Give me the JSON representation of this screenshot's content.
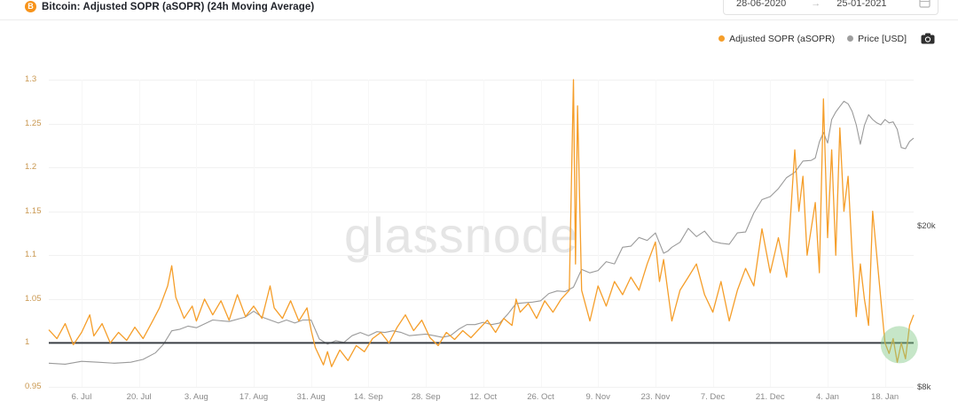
{
  "header": {
    "title": "Bitcoin: Adjusted SOPR (aSOPR) (24h Moving Average)",
    "coin_icon": "bitcoin-icon",
    "btc_glyph": "B",
    "date_range": {
      "start": "28-06-2020",
      "arrow": "→",
      "end": "25-01-2021"
    }
  },
  "legend": {
    "items": [
      {
        "label": "Adjusted SOPR (aSOPR)",
        "color": "#f59e2a"
      },
      {
        "label": "Price [USD]",
        "color": "#9e9e9e"
      }
    ],
    "camera_icon": "camera-icon"
  },
  "watermark": "glassnode",
  "chart_data": {
    "type": "line",
    "title": "Bitcoin: Adjusted SOPR (aSOPR) (24h Moving Average)",
    "grid": true,
    "legend_position": "top-right",
    "baseline_value": 1.0,
    "left_axis": {
      "name": "Adjusted SOPR (aSOPR)",
      "range": [
        0.95,
        1.3
      ],
      "ticks": [
        0.95,
        1.0,
        1.05,
        1.1,
        1.15,
        1.2,
        1.25,
        1.3
      ],
      "tick_labels": [
        "0.95",
        "1",
        "1.05",
        "1.1",
        "1.15",
        "1.2",
        "1.25",
        "1.3"
      ],
      "color": "#c9974f"
    },
    "right_axis": {
      "name": "Price [USD]",
      "scale": "log",
      "visible_tick_labels": [
        "$20k",
        "$8k"
      ],
      "visible_tick_values_usd": [
        20000,
        8000
      ]
    },
    "x_axis": {
      "start_date": "28-06-2020",
      "end_date": "25-01-2021",
      "total_days": 211,
      "tick_labels": [
        "6. Jul",
        "20. Jul",
        "3. Aug",
        "17. Aug",
        "31. Aug",
        "14. Sep",
        "28. Sep",
        "12. Oct",
        "26. Oct",
        "9. Nov",
        "23. Nov",
        "7. Dec",
        "21. Dec",
        "4. Jan",
        "18. Jan"
      ],
      "tick_days": [
        8,
        22,
        36,
        50,
        64,
        78,
        92,
        106,
        120,
        134,
        148,
        162,
        176,
        190,
        204
      ]
    },
    "annotation_circle": {
      "day": 207.5,
      "value": 0.998,
      "radius_px": 21,
      "color": "#81c784",
      "opacity": 0.45
    },
    "series": [
      {
        "name": "Price [USD]",
        "color": "#9a9a9a",
        "axis": "right",
        "unit": "USD thousands",
        "x_days": [
          0,
          4,
          8,
          12,
          16,
          20,
          23,
          26,
          28,
          30,
          32,
          34,
          36,
          40,
          44,
          48,
          50,
          52,
          54,
          56,
          58,
          60,
          62,
          64,
          66,
          68,
          70,
          72,
          74,
          76,
          78,
          80,
          82,
          84,
          86,
          88,
          90,
          92,
          94,
          96,
          98,
          100,
          102,
          104,
          106,
          108,
          110,
          112,
          114,
          116,
          118,
          120,
          122,
          124,
          126,
          128,
          130,
          132,
          134,
          136,
          138,
          140,
          142,
          144,
          146,
          148,
          150,
          151,
          152,
          154,
          156,
          158,
          160,
          162,
          164,
          166,
          168,
          170,
          172,
          174,
          176,
          178,
          180,
          182,
          184,
          186,
          187,
          188,
          189,
          190,
          191,
          192,
          193,
          194,
          195,
          196,
          197,
          198,
          199,
          200,
          201,
          202,
          203,
          204,
          205,
          206,
          207,
          208,
          209,
          210,
          211
        ],
        "values": [
          9.15,
          9.1,
          9.25,
          9.2,
          9.15,
          9.2,
          9.35,
          9.7,
          10.2,
          11.0,
          11.1,
          11.3,
          11.2,
          11.7,
          11.6,
          11.9,
          12.3,
          11.9,
          11.7,
          11.5,
          11.7,
          11.5,
          11.7,
          11.7,
          10.5,
          10.2,
          10.4,
          10.3,
          10.7,
          10.9,
          10.7,
          10.95,
          10.9,
          11.0,
          10.9,
          10.7,
          10.75,
          10.8,
          10.7,
          10.6,
          10.7,
          11.1,
          11.4,
          11.4,
          11.55,
          11.4,
          11.5,
          12.1,
          12.85,
          12.9,
          12.95,
          13.05,
          13.6,
          13.8,
          13.75,
          14.1,
          15.6,
          15.3,
          15.5,
          16.3,
          16.1,
          17.7,
          17.8,
          18.7,
          18.4,
          19.2,
          17.1,
          17.3,
          17.7,
          18.2,
          19.7,
          18.8,
          19.4,
          18.3,
          18.1,
          18.0,
          19.2,
          19.3,
          21.5,
          23.2,
          23.6,
          24.7,
          26.3,
          27.1,
          28.9,
          29.0,
          29.4,
          32.2,
          34.0,
          32.0,
          36.6,
          38.2,
          39.4,
          40.6,
          40.0,
          38.3,
          35.5,
          31.8,
          35.4,
          37.6,
          36.6,
          35.9,
          35.5,
          36.6,
          35.9,
          36.1,
          34.6,
          31.2,
          31.0,
          32.3,
          32.9
        ]
      },
      {
        "name": "Adjusted SOPR (aSOPR)",
        "color": "#f59e2a",
        "axis": "left",
        "x_days": [
          0,
          2,
          4,
          6,
          8,
          10,
          11,
          13,
          15,
          17,
          19,
          21,
          23,
          25,
          27,
          29,
          30,
          31,
          33,
          35,
          36,
          38,
          40,
          42,
          44,
          46,
          48,
          50,
          52,
          54,
          55,
          57,
          59,
          61,
          63,
          64,
          65,
          66,
          67,
          68,
          69,
          71,
          73,
          75,
          77,
          79,
          81,
          83,
          85,
          87,
          89,
          91,
          93,
          95,
          97,
          99,
          101,
          103,
          105,
          107,
          109,
          111,
          113,
          114,
          115,
          117,
          119,
          121,
          123,
          125,
          127,
          128,
          128.5,
          129,
          130,
          132,
          134,
          136,
          138,
          140,
          142,
          144,
          146,
          148,
          149,
          150,
          152,
          154,
          156,
          158,
          160,
          162,
          164,
          166,
          168,
          170,
          172,
          174,
          176,
          178,
          180,
          182,
          183,
          184,
          185,
          187,
          188,
          189,
          190,
          191,
          192,
          193,
          194,
          195,
          196,
          197,
          198,
          199,
          200,
          201,
          202,
          203,
          204,
          205,
          206,
          207,
          208,
          209,
          210,
          211
        ],
        "values": [
          1.015,
          1.005,
          1.022,
          0.998,
          1.012,
          1.032,
          1.008,
          1.022,
          1.0,
          1.012,
          1.003,
          1.018,
          1.005,
          1.022,
          1.04,
          1.065,
          1.088,
          1.052,
          1.028,
          1.042,
          1.025,
          1.05,
          1.032,
          1.048,
          1.026,
          1.055,
          1.03,
          1.042,
          1.028,
          1.065,
          1.04,
          1.028,
          1.048,
          1.025,
          1.04,
          1.015,
          0.995,
          0.985,
          0.975,
          0.99,
          0.973,
          0.992,
          0.98,
          0.997,
          0.99,
          1.005,
          1.012,
          1.0,
          1.018,
          1.032,
          1.014,
          1.026,
          1.006,
          0.997,
          1.012,
          1.004,
          1.014,
          1.006,
          1.016,
          1.026,
          1.012,
          1.028,
          1.02,
          1.05,
          1.035,
          1.045,
          1.028,
          1.048,
          1.035,
          1.05,
          1.06,
          1.3,
          1.09,
          1.27,
          1.06,
          1.025,
          1.065,
          1.042,
          1.07,
          1.055,
          1.075,
          1.06,
          1.09,
          1.115,
          1.07,
          1.095,
          1.025,
          1.06,
          1.075,
          1.09,
          1.055,
          1.035,
          1.07,
          1.025,
          1.06,
          1.085,
          1.065,
          1.13,
          1.08,
          1.12,
          1.075,
          1.22,
          1.15,
          1.19,
          1.1,
          1.16,
          1.08,
          1.278,
          1.12,
          1.22,
          1.1,
          1.245,
          1.15,
          1.19,
          1.1,
          1.03,
          1.09,
          1.05,
          1.02,
          1.15,
          1.1,
          1.05,
          1.0,
          0.988,
          1.005,
          0.978,
          1.0,
          0.982,
          1.02,
          1.032
        ]
      }
    ]
  }
}
